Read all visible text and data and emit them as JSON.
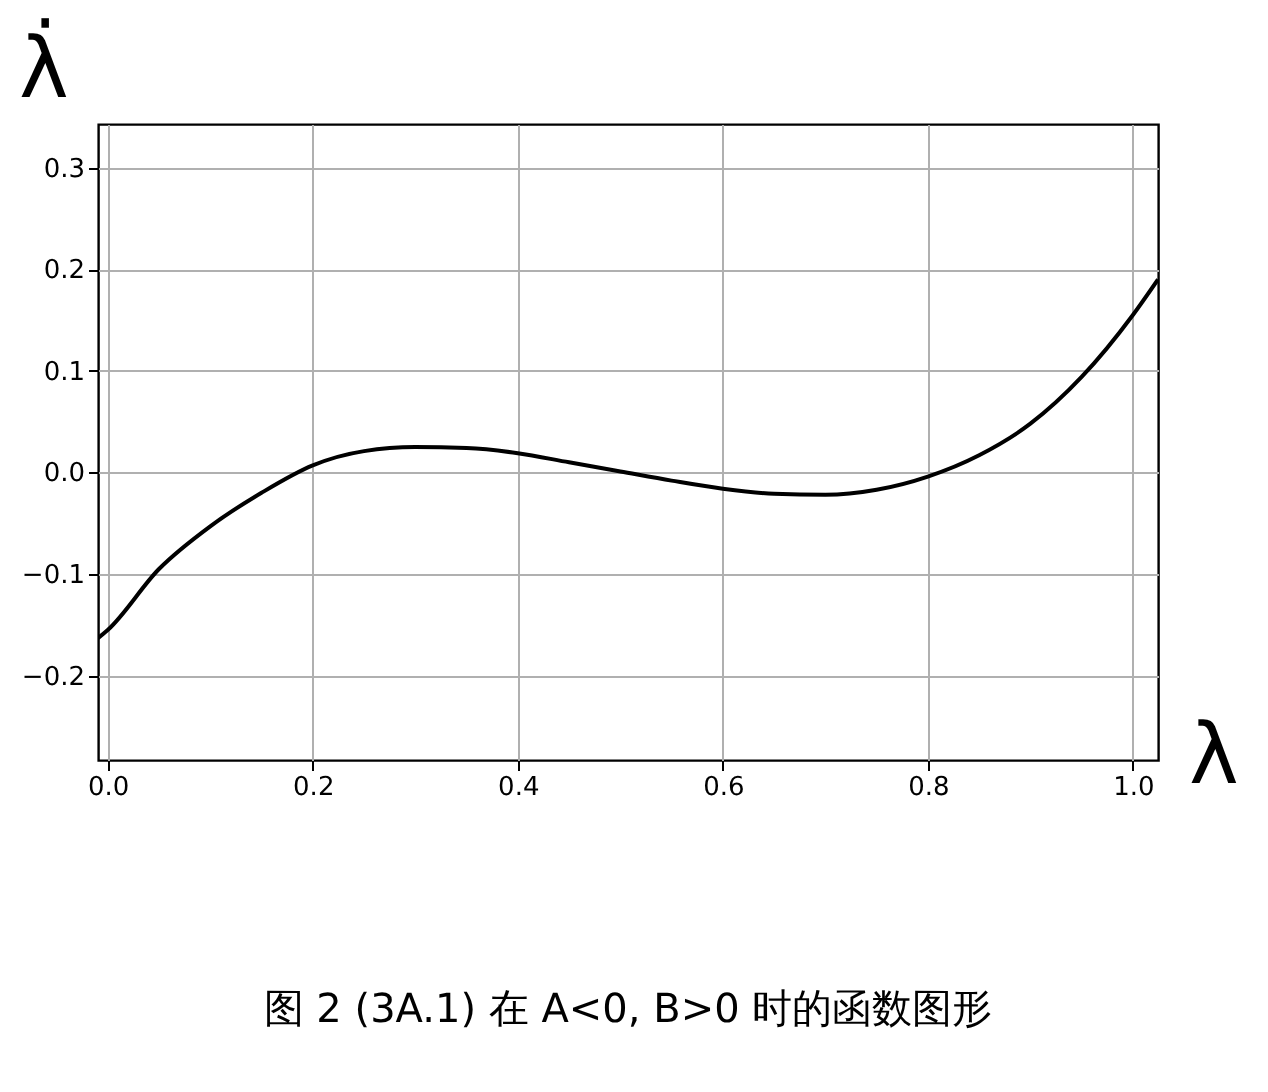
{
  "chart_data": {
    "type": "line",
    "xlabel": "λ",
    "ylabel": "λ̇",
    "annotations": [
      "图 2 (3A.1) 在 A<0, B>0 时的函数图形"
    ],
    "x": [
      -0.0095,
      0,
      0.05,
      0.1,
      0.15,
      0.2,
      0.25,
      0.3,
      0.35,
      0.4,
      0.45,
      0.5,
      0.55,
      0.6,
      0.65,
      0.7,
      0.75,
      0.8,
      0.85,
      0.9,
      0.95,
      1.0,
      1.0245
    ],
    "series": [
      {
        "color": "#000000",
        "values": [
          -0.163,
          -0.155,
          -0.095,
          -0.053,
          -0.02,
          0.007,
          0.021,
          0.025,
          0.024,
          0.019,
          0.01,
          0.001,
          -0.008,
          -0.016,
          -0.021,
          -0.022,
          -0.017,
          -0.004,
          0.017,
          0.048,
          0.094,
          0.155,
          0.19
        ]
      }
    ],
    "xlim": [
      -0.0095,
      1.0245
    ],
    "ylim": [
      -0.283,
      0.343
    ],
    "xticks": [
      {
        "value": 0,
        "label": "0.0"
      },
      0.2,
      0.4,
      0.6,
      0.8,
      {
        "value": 1,
        "label": "1.0"
      }
    ],
    "yticks": [
      {
        "value": -0.2,
        "label": "−0.2"
      },
      {
        "value": -0.1,
        "label": "−0.1"
      },
      {
        "value": 0,
        "label": "0.0"
      },
      0.1,
      0.2,
      0.3
    ],
    "grid": true,
    "marker": "none",
    "line_style": "solid"
  }
}
